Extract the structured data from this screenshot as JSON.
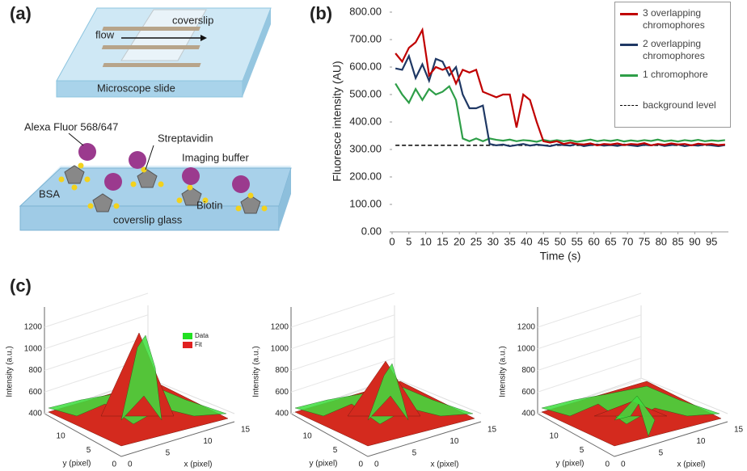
{
  "panel_labels": [
    "(a)",
    "(b)",
    "(c)"
  ],
  "panel_a": {
    "coverslip": "coverslip",
    "flow": "flow",
    "slide": "Microscope slide",
    "fluor": "Alexa Fluor 568/647",
    "streptavidin": "Streptavidin",
    "buffer": "Imaging buffer",
    "bsa": "BSA",
    "biotin": "Biotin",
    "glass": "coverslip glass"
  },
  "chart_data": {
    "type": "line",
    "y_label": "Fluoresce intensity (AU)",
    "x_label": "Time (s)",
    "x": [
      1,
      3,
      5,
      7,
      9,
      11,
      13,
      15,
      17,
      19,
      21,
      23,
      25,
      27,
      29,
      31,
      33,
      35,
      37,
      39,
      41,
      43,
      45,
      47,
      49,
      51,
      53,
      55,
      57,
      59,
      61,
      63,
      65,
      67,
      69,
      71,
      73,
      75,
      77,
      79,
      81,
      83,
      85,
      87,
      89,
      91,
      93,
      95,
      97,
      99
    ],
    "series": [
      {
        "name": "3 overlapping chromophores",
        "color": "#c00000",
        "values": [
          650,
          620,
          670,
          690,
          735,
          570,
          600,
          590,
          600,
          540,
          590,
          580,
          590,
          510,
          500,
          490,
          500,
          500,
          380,
          500,
          480,
          400,
          330,
          325,
          330,
          320,
          325,
          320,
          318,
          322,
          315,
          320,
          318,
          322,
          316,
          320,
          318,
          323,
          315,
          320,
          317,
          322,
          318,
          320,
          315,
          321,
          318,
          320,
          316,
          318
        ]
      },
      {
        "name": "2 overlapping chromophores",
        "color": "#1f3864",
        "values": [
          595,
          590,
          640,
          560,
          610,
          550,
          630,
          620,
          570,
          600,
          500,
          450,
          450,
          460,
          320,
          315,
          318,
          312,
          316,
          320,
          314,
          318,
          315,
          312,
          318,
          316,
          314,
          320,
          312,
          316,
          318,
          314,
          316,
          313,
          318,
          315,
          312,
          317,
          315,
          319,
          313,
          316,
          318,
          312,
          316,
          314,
          318,
          315,
          312,
          316
        ]
      },
      {
        "name": "1 chromophore",
        "color": "#2e9e48",
        "values": [
          540,
          500,
          470,
          520,
          480,
          520,
          500,
          510,
          530,
          480,
          340,
          330,
          340,
          330,
          340,
          335,
          332,
          336,
          330,
          334,
          332,
          328,
          335,
          330,
          334,
          330,
          333,
          328,
          332,
          336,
          330,
          334,
          331,
          335,
          329,
          333,
          330,
          334,
          331,
          336,
          330,
          333,
          329,
          334,
          331,
          335,
          330,
          333,
          331,
          334
        ]
      },
      {
        "name": "background level",
        "color": "#000000",
        "dash": true,
        "values": [
          315,
          315,
          315,
          315,
          315,
          315,
          315,
          315,
          315,
          315,
          315,
          315,
          315,
          315,
          315,
          315,
          315,
          315,
          315,
          315,
          315,
          315,
          315,
          315,
          315,
          315,
          315,
          315,
          315,
          315,
          315,
          315,
          315,
          315,
          315,
          315,
          315,
          315,
          315,
          315,
          315,
          315,
          315,
          315,
          315,
          315,
          315,
          315,
          315,
          315
        ]
      }
    ],
    "ylim": [
      0,
      800
    ],
    "yticks": [
      {
        "value": 0,
        "label": "0.00"
      },
      {
        "value": 100,
        "label": "100.00"
      },
      {
        "value": 200,
        "label": "200.00"
      },
      {
        "value": 300,
        "label": "300.00"
      },
      {
        "value": 400,
        "label": "400.00"
      },
      {
        "value": 500,
        "label": "500.00"
      },
      {
        "value": 600,
        "label": "600.00"
      },
      {
        "value": 700,
        "label": "700.00"
      },
      {
        "value": 800,
        "label": "800.00"
      }
    ],
    "xlim": [
      0,
      100
    ],
    "xticks": [
      0,
      5,
      10,
      15,
      20,
      25,
      30,
      35,
      40,
      45,
      50,
      55,
      60,
      65,
      70,
      75,
      80,
      85,
      90,
      95
    ]
  },
  "panel_c": {
    "z_label": "Intensity (a.u.)",
    "x_label": "x (pixel)",
    "y_label": "y (pixel)",
    "zlim": [
      400,
      1200
    ],
    "zticks": [
      400,
      600,
      800,
      1000,
      1200
    ],
    "xlim": [
      0,
      15
    ],
    "xticks": [
      0,
      5,
      10,
      15
    ],
    "ylim": [
      0,
      15
    ],
    "yticks": [
      0,
      5,
      10
    ],
    "legend": [
      {
        "name": "Data",
        "color": "#22e022"
      },
      {
        "name": "Fit",
        "color": "#e02020"
      }
    ],
    "plots": 3
  }
}
